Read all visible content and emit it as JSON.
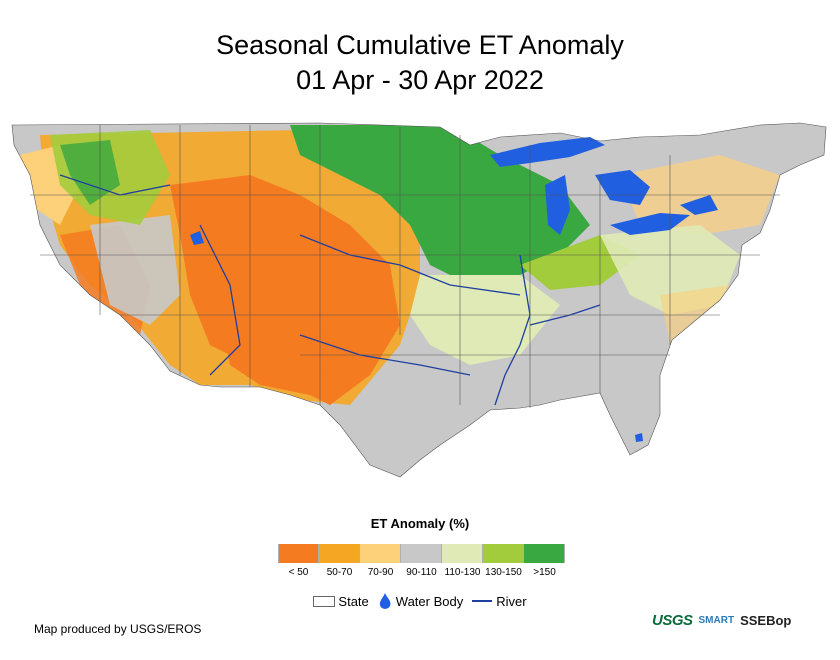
{
  "title": {
    "line1": "Seasonal Cumulative ET Anomaly",
    "line2": "01 Apr - 30 Apr 2022"
  },
  "legend": {
    "title": "ET Anomaly (%)",
    "classes": [
      {
        "label": "< 50",
        "color": "#f47b20"
      },
      {
        "label": "50-70",
        "color": "#f5a623"
      },
      {
        "label": "70-90",
        "color": "#fdd07a"
      },
      {
        "label": "90-110",
        "color": "#c8c8c8"
      },
      {
        "label": "110-130",
        "color": "#dfeab6"
      },
      {
        "label": "130-150",
        "color": "#a3cc3c"
      },
      {
        "label": ">150",
        "color": "#3aa840"
      }
    ]
  },
  "keys": {
    "state": "State",
    "water_body": "Water Body",
    "river": "River"
  },
  "credit": "Map produced by USGS/EROS",
  "logos": {
    "usgs": "USGS",
    "smart": "SMART",
    "ssebop": "SSEBop"
  },
  "colors": {
    "water": "#1f5fe0",
    "river": "#1f3fa0",
    "state_line": "#555555"
  }
}
